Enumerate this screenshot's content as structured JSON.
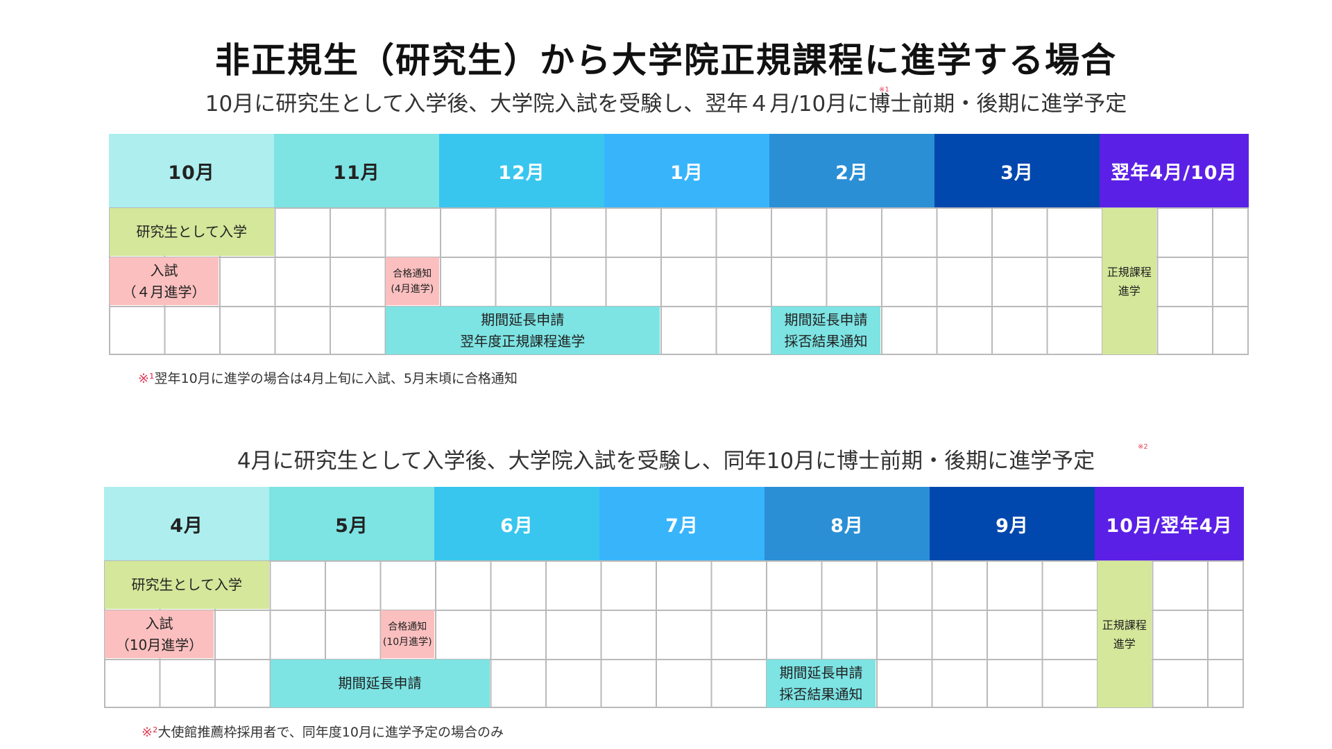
{
  "title": "非正規生（研究生）から大学院正規課程に進学する場合",
  "sections": [
    {
      "subtitle": "10月に研究生として入学後、大学院入試を受験し、翌年４月/10月に博士前期・後期に進学予定",
      "subtitle_mark": "※1",
      "months": [
        {
          "label": "10月",
          "bg": "#aeeeee",
          "fg": "#222222"
        },
        {
          "label": "11月",
          "bg": "#7de3e3",
          "fg": "#222222"
        },
        {
          "label": "12月",
          "bg": "#38c6ee",
          "fg": "#ffffff"
        },
        {
          "label": "1月",
          "bg": "#38b4fb",
          "fg": "#ffffff"
        },
        {
          "label": "2月",
          "bg": "#2a8fd5",
          "fg": "#ffffff"
        },
        {
          "label": "3月",
          "bg": "#0048ae",
          "fg": "#ffffff"
        },
        {
          "label": "翌年4月/10月",
          "bg": "#5b20e6",
          "fg": "#ffffff"
        }
      ],
      "bars": [
        {
          "lines": [
            "研究生として入学"
          ],
          "bg": "#d4e79a",
          "size": "normal"
        },
        {
          "lines": [
            "入試",
            "（４月進学）"
          ],
          "bg": "#fbbfbf",
          "size": "normal"
        },
        {
          "lines": [
            "合格通知",
            "(4月進学)"
          ],
          "bg": "#fbbfbf",
          "size": "small"
        },
        {
          "lines": [
            "期間延長申請",
            "翌年度正規課程進学"
          ],
          "bg": "#7de3e3",
          "size": "normal"
        },
        {
          "lines": [
            "期間延長申請",
            "採否結果通知"
          ],
          "bg": "#7de3e3",
          "size": "normal"
        },
        {
          "lines": [
            "正規課程",
            "進学"
          ],
          "bg": "#d4e79a",
          "size": "vsmall"
        }
      ],
      "note_mark": "※¹",
      "note": "翌年10月に進学の場合は4月上旬に入試、5月末頃に合格通知"
    },
    {
      "subtitle": "4月に研究生として入学後、大学院入試を受験し、同年10月に博士前期・後期に進学予定",
      "subtitle_mark": "※2",
      "months": [
        {
          "label": "4月",
          "bg": "#aeeeee",
          "fg": "#222222"
        },
        {
          "label": "5月",
          "bg": "#7de3e3",
          "fg": "#222222"
        },
        {
          "label": "6月",
          "bg": "#38c6ee",
          "fg": "#ffffff"
        },
        {
          "label": "7月",
          "bg": "#38b4fb",
          "fg": "#ffffff"
        },
        {
          "label": "8月",
          "bg": "#2a8fd5",
          "fg": "#ffffff"
        },
        {
          "label": "9月",
          "bg": "#0048ae",
          "fg": "#ffffff"
        },
        {
          "label": "10月/翌年4月",
          "bg": "#5b20e6",
          "fg": "#ffffff"
        }
      ],
      "bars": [
        {
          "lines": [
            "研究生として入学"
          ],
          "bg": "#d4e79a",
          "size": "normal"
        },
        {
          "lines": [
            "入試",
            "（10月進学）"
          ],
          "bg": "#fbbfbf",
          "size": "normal"
        },
        {
          "lines": [
            "合格通知",
            "(10月進学)"
          ],
          "bg": "#fbbfbf",
          "size": "small"
        },
        {
          "lines": [
            "期間延長申請"
          ],
          "bg": "#7de3e3",
          "size": "normal"
        },
        {
          "lines": [
            "期間延長申請",
            "採否結果通知"
          ],
          "bg": "#7de3e3",
          "size": "normal"
        },
        {
          "lines": [
            "正規課程",
            "進学"
          ],
          "bg": "#d4e79a",
          "size": "vsmall"
        }
      ],
      "note_mark": "※²",
      "note": "大使館推薦枠採用者で、同年度10月に進学予定の場合のみ"
    }
  ]
}
